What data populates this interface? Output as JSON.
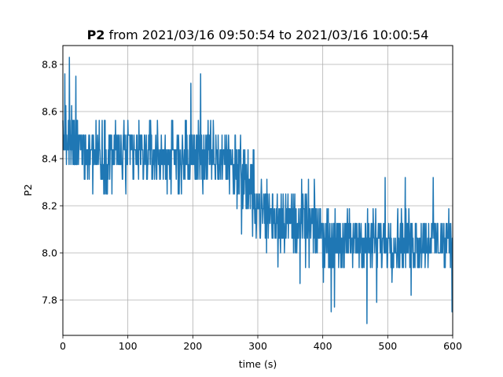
{
  "chart_data": {
    "type": "line",
    "title_bold": "P2",
    "title_rest": " from 2021/03/16 09:50:54 to 2021/03/16 10:00:54",
    "xlabel": "time (s)",
    "ylabel": "P2",
    "xlim": [
      0,
      600
    ],
    "ylim": [
      7.65,
      8.88
    ],
    "xticks": [
      0,
      100,
      200,
      300,
      400,
      500,
      600
    ],
    "xtick_labels": [
      "0",
      "100",
      "200",
      "300",
      "400",
      "500",
      "600"
    ],
    "yticks": [
      7.8,
      8.0,
      8.2,
      8.4,
      8.6,
      8.8
    ],
    "ytick_labels": [
      "7.8",
      "8.0",
      "8.2",
      "8.4",
      "8.6",
      "8.8"
    ],
    "grid": true,
    "series": [
      {
        "color": "#1f77b4",
        "segments": [
          {
            "x_start": 0,
            "x_end": 60,
            "mean_start": 8.47,
            "mean_end": 8.42,
            "low": 8.25,
            "high": 8.7
          },
          {
            "x_start": 60,
            "x_end": 260,
            "mean_start": 8.42,
            "mean_end": 8.4,
            "low": 8.2,
            "high": 8.63
          },
          {
            "x_start": 260,
            "x_end": 300,
            "mean_start": 8.4,
            "mean_end": 8.22,
            "low": 8.06,
            "high": 8.55
          },
          {
            "x_start": 300,
            "x_end": 400,
            "mean_start": 8.18,
            "mean_end": 8.1,
            "low": 7.95,
            "high": 8.38
          },
          {
            "x_start": 400,
            "x_end": 600,
            "mean_start": 8.05,
            "mean_end": 8.05,
            "low": 7.88,
            "high": 8.25
          }
        ],
        "spikes": [
          {
            "x": 10,
            "y": 8.83
          },
          {
            "x": 3,
            "y": 8.76
          },
          {
            "x": 20,
            "y": 8.75
          },
          {
            "x": 212,
            "y": 8.76
          },
          {
            "x": 197,
            "y": 8.72
          },
          {
            "x": 275,
            "y": 8.08
          },
          {
            "x": 292,
            "y": 8.07
          },
          {
            "x": 331,
            "y": 7.94
          },
          {
            "x": 365,
            "y": 7.87
          },
          {
            "x": 413,
            "y": 7.75
          },
          {
            "x": 418,
            "y": 7.77
          },
          {
            "x": 468,
            "y": 7.7
          },
          {
            "x": 483,
            "y": 7.79
          },
          {
            "x": 536,
            "y": 7.82
          },
          {
            "x": 599,
            "y": 7.75
          },
          {
            "x": 496,
            "y": 8.32
          },
          {
            "x": 527,
            "y": 8.32
          },
          {
            "x": 570,
            "y": 8.32
          }
        ],
        "sample_step_s": 0.5,
        "quantization": 0.0625
      }
    ]
  }
}
